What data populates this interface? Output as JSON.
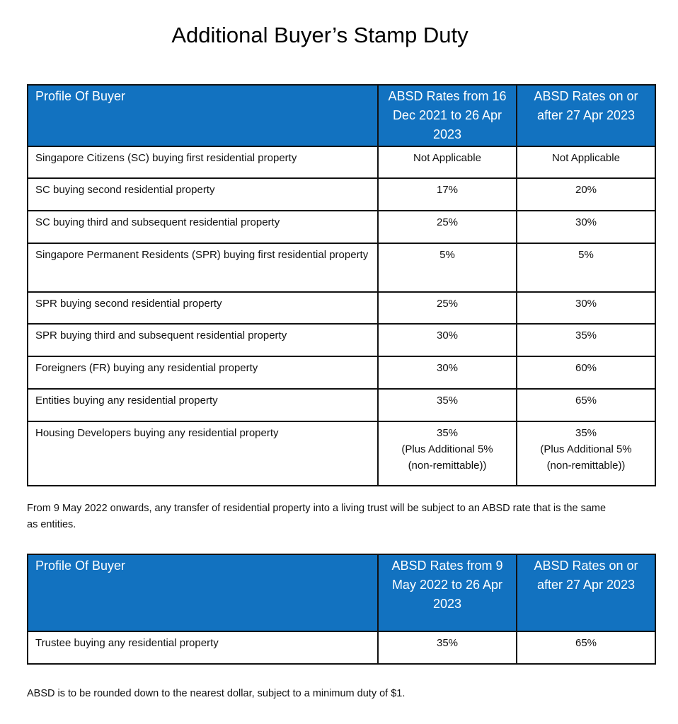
{
  "title": "Additional Buyer’s Stamp Duty",
  "table1": {
    "headers": [
      "Profile Of Buyer",
      "ABSD Rates from 16 Dec 2021 to 26 Apr 2023",
      "ABSD Rates on or after 27 Apr 2023"
    ],
    "rows": [
      [
        "Singapore Citizens (SC) buying first residential property",
        "Not Applicable",
        "Not Applicable"
      ],
      [
        "SC buying second residential property",
        "17%",
        "20%"
      ],
      [
        "SC buying third and subsequent residential property",
        "25%",
        "30%"
      ],
      [
        "Singapore Permanent Residents (SPR) buying first residential property",
        "5%",
        "5%"
      ],
      [
        "SPR buying second residential property",
        "25%",
        "30%"
      ],
      [
        "SPR buying third and subsequent residential property",
        "30%",
        "35%"
      ],
      [
        "Foreigners (FR) buying any residential property",
        "30%",
        "60%"
      ],
      [
        "Entities buying any residential property",
        "35%",
        "65%"
      ],
      [
        "Housing Developers buying any residential property",
        "35% (Plus Additional 5% (non-remittable))",
        "35% (Plus Additional 5% (non-remittable))"
      ]
    ]
  },
  "note1": "From 9 May 2022 onwards, any transfer of residential property into a living trust will be subject to an ABSD rate that is the same as entities.",
  "table2": {
    "headers": [
      "Profile Of Buyer",
      "ABSD Rates from 9 May 2022 to 26 Apr 2023",
      "ABSD Rates on or after 27 Apr 2023"
    ],
    "rows": [
      [
        "Trustee buying any residential property",
        "35%",
        "65%"
      ]
    ]
  },
  "note2": "ABSD is to be rounded down to the nearest dollar, subject to a minimum duty of $1.",
  "colors": {
    "header_bg": "#1272c0",
    "header_text": "#ffffff"
  }
}
